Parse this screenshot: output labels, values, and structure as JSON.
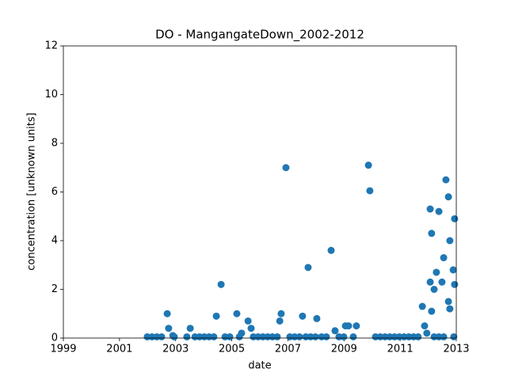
{
  "chart_data": {
    "type": "scatter",
    "title": "DO - MangangateDown_2002-2012",
    "x_label": "date",
    "y_label": "concentration [unknown units]",
    "color": "#1f77b4",
    "grid": false,
    "xlim": [
      1999,
      2013
    ],
    "xticks": [
      1999,
      2001,
      2003,
      2005,
      2007,
      2009,
      2011,
      2013
    ],
    "ylim": [
      0,
      12
    ],
    "yticks": [
      0,
      2,
      4,
      6,
      8,
      10,
      12
    ],
    "x": [
      2002.7,
      2002.75,
      2002.9,
      2003.52,
      2004.45,
      2004.62,
      2005.18,
      2005.35,
      2005.58,
      2005.69,
      2006.71,
      2006.76,
      2006.93,
      2007.52,
      2007.72,
      2008.03,
      2008.54,
      2008.68,
      2009.05,
      2009.16,
      2009.44,
      2009.87,
      2009.92,
      2011.79,
      2011.87,
      2011.95,
      2012.07,
      2012.07,
      2012.12,
      2012.12,
      2012.21,
      2012.29,
      2012.38,
      2012.49,
      2012.55,
      2012.63,
      2012.72,
      2012.72,
      2012.77,
      2012.77,
      2012.89,
      2012.94,
      2012.94,
      2012.91,
      2001.99,
      2002.16,
      2002.33,
      2002.5,
      2002.95,
      2003.4,
      2003.69,
      2003.85,
      2004.02,
      2004.19,
      2004.36,
      2004.76,
      2004.93,
      2005.27,
      2005.77,
      2005.94,
      2006.11,
      2006.28,
      2006.45,
      2006.62,
      2007.07,
      2007.24,
      2007.41,
      2007.64,
      2007.81,
      2007.98,
      2008.2,
      2008.37,
      2008.82,
      2008.99,
      2009.33,
      2010.12,
      2010.29,
      2010.46,
      2010.63,
      2010.8,
      2010.97,
      2011.14,
      2011.31,
      2011.48,
      2011.64,
      2012.21,
      2012.38,
      2012.55
    ],
    "values": [
      1.0,
      0.4,
      0.1,
      0.4,
      0.9,
      2.2,
      1.0,
      0.2,
      0.7,
      0.4,
      0.7,
      1.0,
      7.0,
      0.9,
      2.9,
      0.8,
      3.6,
      0.3,
      0.5,
      0.5,
      0.5,
      7.1,
      6.05,
      1.3,
      0.5,
      0.2,
      5.3,
      2.3,
      4.3,
      1.1,
      2.0,
      2.7,
      5.2,
      2.3,
      3.3,
      6.5,
      5.8,
      1.5,
      1.2,
      4.0,
      2.8,
      4.9,
      2.2,
      0.05,
      0.05,
      0.05,
      0.05,
      0.05,
      0.05,
      0.05,
      0.05,
      0.05,
      0.05,
      0.05,
      0.05,
      0.05,
      0.05,
      0.05,
      0.05,
      0.05,
      0.05,
      0.05,
      0.05,
      0.05,
      0.05,
      0.05,
      0.05,
      0.05,
      0.05,
      0.05,
      0.05,
      0.05,
      0.05,
      0.05,
      0.05,
      0.05,
      0.05,
      0.05,
      0.05,
      0.05,
      0.05,
      0.05,
      0.05,
      0.05,
      0.05,
      0.05,
      0.05,
      0.05
    ]
  }
}
